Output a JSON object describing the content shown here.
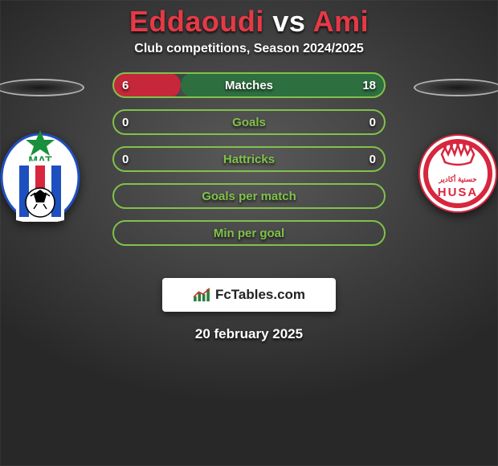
{
  "title": {
    "left": "Eddaoudi",
    "vs": " vs ",
    "right": "Ami"
  },
  "title_colors": {
    "left": "#e63946",
    "vs": "#ffffff",
    "right": "#e63946"
  },
  "subtitle": "Club competitions, Season 2024/2025",
  "date": "20 february 2025",
  "watermark": "FcTables.com",
  "left_club": {
    "name": "MAT",
    "badge_colors": {
      "outer": "#ffffff",
      "stripe1": "#1e4fbf",
      "stripe2": "#d7263d",
      "star": "#1a8f3c"
    }
  },
  "right_club": {
    "name": "HUSA",
    "badge_colors": {
      "outer": "#ffffff",
      "ring": "#d7263d",
      "crown": "#d7263d"
    }
  },
  "bars": [
    {
      "label": "Matches",
      "left_val": "6",
      "right_val": "18",
      "left_pct": 25,
      "right_pct": 75,
      "left_color": "#c6273a",
      "right_color": "#2e6f40",
      "border_color": "#80c24a",
      "label_color": "#ffffff"
    },
    {
      "label": "Goals",
      "left_val": "0",
      "right_val": "0",
      "left_pct": 0,
      "right_pct": 0,
      "left_color": "#c6273a",
      "right_color": "#2e6f40",
      "border_color": "#80c24a",
      "label_color": "#80c24a"
    },
    {
      "label": "Hattricks",
      "left_val": "0",
      "right_val": "0",
      "left_pct": 0,
      "right_pct": 0,
      "left_color": "#c6273a",
      "right_color": "#2e6f40",
      "border_color": "#80c24a",
      "label_color": "#80c24a"
    },
    {
      "label": "Goals per match",
      "left_val": "",
      "right_val": "",
      "left_pct": 0,
      "right_pct": 0,
      "left_color": "#c6273a",
      "right_color": "#2e6f40",
      "border_color": "#80c24a",
      "label_color": "#80c24a"
    },
    {
      "label": "Min per goal",
      "left_val": "",
      "right_val": "",
      "left_pct": 0,
      "right_pct": 0,
      "left_color": "#c6273a",
      "right_color": "#2e6f40",
      "border_color": "#80c24a",
      "label_color": "#80c24a"
    }
  ]
}
